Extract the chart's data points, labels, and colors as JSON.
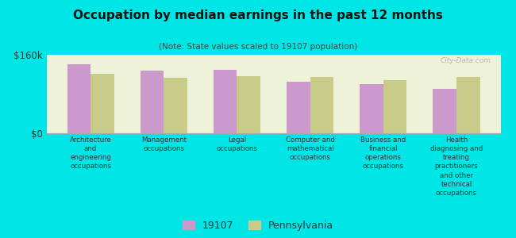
{
  "title": "Occupation by median earnings in the past 12 months",
  "subtitle": "(Note: State values scaled to 19107 population)",
  "background_color": "#00e5e5",
  "plot_bg_color": "#eef2d8",
  "categories": [
    "Architecture\nand\nengineering\noccupations",
    "Management\noccupations",
    "Legal\noccupations",
    "Computer and\nmathematical\noccupations",
    "Business and\nfinancial\noperations\noccupations",
    "Health\ndiagnosing and\ntreating\npractitioners\nand other\ntechnical\noccupations"
  ],
  "values_19107": [
    140000,
    127000,
    130000,
    105000,
    100000,
    90000
  ],
  "values_pa": [
    122000,
    113000,
    116000,
    115000,
    108000,
    115000
  ],
  "color_19107": "#cc99cc",
  "color_pa": "#c8cc88",
  "ylim": [
    0,
    160000
  ],
  "yticks": [
    0,
    160000
  ],
  "ytick_labels": [
    "$0",
    "$160k"
  ],
  "legend_labels": [
    "19107",
    "Pennsylvania"
  ],
  "watermark": "City-Data.com",
  "bar_width": 0.32,
  "title_fontsize": 11,
  "subtitle_fontsize": 7.5,
  "xtick_fontsize": 6.2,
  "ytick_fontsize": 8.5,
  "legend_fontsize": 9
}
